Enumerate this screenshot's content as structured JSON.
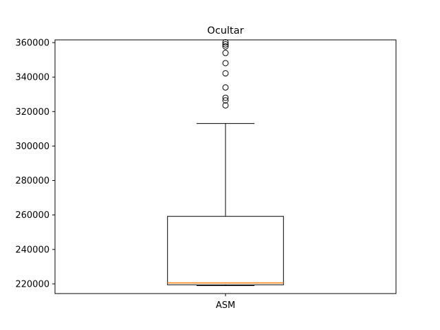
{
  "chart_data": {
    "type": "box",
    "title": "Ocultar",
    "xlabel": "",
    "ylabel": "",
    "categories": [
      "ASM"
    ],
    "ylim": [
      214400,
      361600
    ],
    "yticks": [
      220000,
      240000,
      260000,
      280000,
      300000,
      320000,
      340000,
      360000
    ],
    "ytick_labels": [
      "220000",
      "240000",
      "260000",
      "280000",
      "300000",
      "320000",
      "340000",
      "360000"
    ],
    "grid": false,
    "boxes": [
      {
        "category": "ASM",
        "whisker_low": 219000,
        "q1": 219500,
        "median": 220600,
        "q3": 259200,
        "whisker_high": 313100,
        "outliers": [
          323600,
          326500,
          328000,
          334000,
          342200,
          348100,
          354000,
          357800,
          359000,
          360200
        ]
      }
    ],
    "colors": {
      "box": "#000000",
      "median": "#ff7f0e",
      "outlier": "#000000"
    }
  }
}
